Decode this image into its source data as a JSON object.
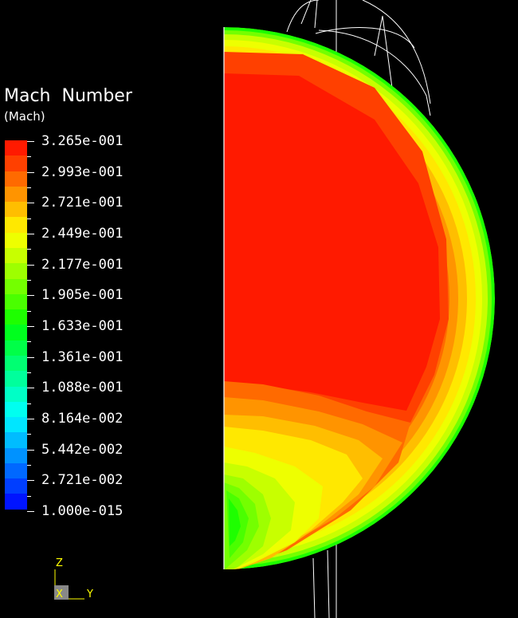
{
  "legend": {
    "title": "Mach  Number",
    "unit": "(Mach)",
    "labels": [
      "3.265e-001",
      "2.993e-001",
      "2.721e-001",
      "2.449e-001",
      "2.177e-001",
      "1.905e-001",
      "1.633e-001",
      "1.361e-001",
      "1.088e-001",
      "8.164e-002",
      "5.442e-002",
      "2.721e-002",
      "1.000e-015"
    ],
    "colors": [
      "#ff1a00",
      "#ff4000",
      "#ff6a00",
      "#ff9400",
      "#ffbe00",
      "#ffe800",
      "#eeff00",
      "#c8ff00",
      "#9eff00",
      "#74ff00",
      "#4aff00",
      "#1eff00",
      "#00ff1e",
      "#00ff48",
      "#00ff72",
      "#00ff9c",
      "#00ffc6",
      "#00fff0",
      "#00e6ff",
      "#00bcff",
      "#0092ff",
      "#0068ff",
      "#003eff",
      "#0014ff"
    ]
  },
  "triad": {
    "z": "Z",
    "x": "X",
    "y": "Y"
  },
  "colors": {
    "background": "#000000",
    "triad_z": "#ffff00",
    "triad_y": "#ffff00",
    "triad_x": "#ffff00"
  }
}
